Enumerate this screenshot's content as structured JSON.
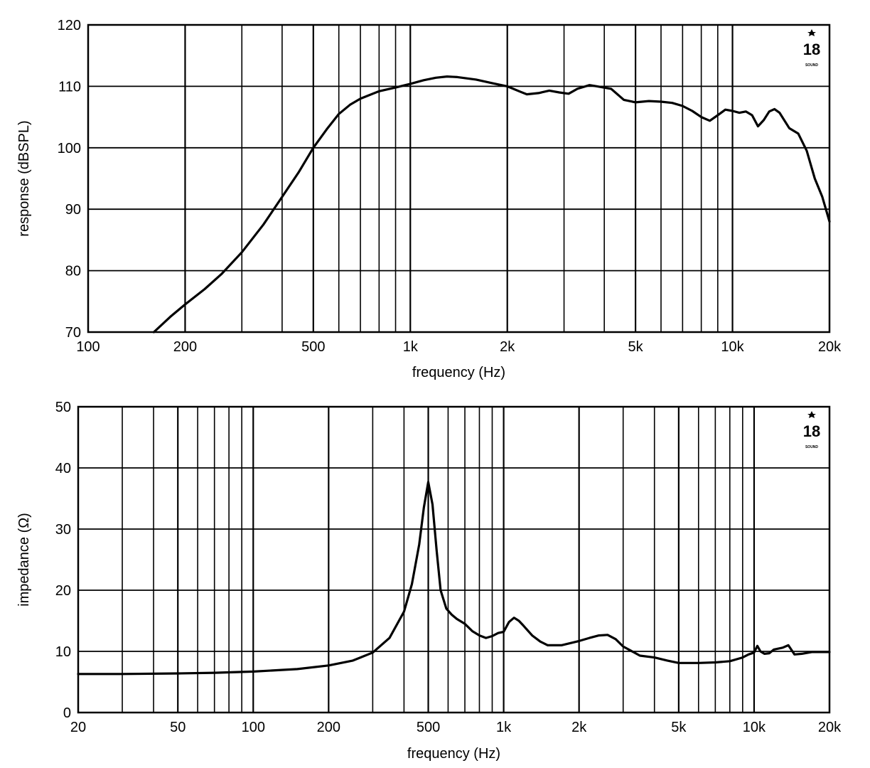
{
  "chart_data": [
    {
      "type": "line",
      "title": "",
      "xlabel": "frequency (Hz)",
      "ylabel": "response (dBSPL)",
      "xscale": "log",
      "xlim": [
        100,
        20000
      ],
      "ylim": [
        70,
        120
      ],
      "grid": true,
      "yticks": [
        70,
        80,
        90,
        100,
        110,
        120
      ],
      "xticks": [
        {
          "value": 100,
          "label": "100"
        },
        {
          "value": 200,
          "label": "200"
        },
        {
          "value": 500,
          "label": "500"
        },
        {
          "value": 1000,
          "label": "1k"
        },
        {
          "value": 2000,
          "label": "2k"
        },
        {
          "value": 5000,
          "label": "5k"
        },
        {
          "value": 10000,
          "label": "10k"
        },
        {
          "value": 20000,
          "label": "20k"
        }
      ],
      "logo": {
        "number": "18",
        "name": "SOUND",
        "position": "top-right"
      },
      "series": [
        {
          "x": [
            160,
            180,
            200,
            230,
            260,
            300,
            350,
            400,
            450,
            500,
            550,
            600,
            650,
            700,
            800,
            900,
            1000,
            1100,
            1200,
            1300,
            1400,
            1600,
            1800,
            2000,
            2200,
            2300,
            2500,
            2700,
            2900,
            3100,
            3300,
            3600,
            3800,
            4200,
            4600,
            5000,
            5500,
            6000,
            6500,
            7000,
            7500,
            8000,
            8500,
            9000,
            9500,
            10000,
            10500,
            11000,
            11500,
            12000,
            12500,
            13000,
            13500,
            14000,
            15000,
            16000,
            17000,
            18000,
            19000,
            20000
          ],
          "y": [
            70,
            72.5,
            74.5,
            77,
            79.5,
            83,
            87.5,
            92,
            96,
            100,
            103,
            105.5,
            107,
            108,
            109.2,
            109.8,
            110.4,
            111,
            111.4,
            111.6,
            111.5,
            111.1,
            110.5,
            110,
            109.1,
            108.7,
            108.9,
            109.3,
            109,
            108.8,
            109.6,
            110.2,
            110,
            109.6,
            107.8,
            107.4,
            107.6,
            107.5,
            107.3,
            106.8,
            106,
            105,
            104.4,
            105.3,
            106.2,
            106,
            105.7,
            105.9,
            105.3,
            103.5,
            104.5,
            105.9,
            106.3,
            105.7,
            103.2,
            102.3,
            99.5,
            95,
            92,
            88
          ]
        }
      ]
    },
    {
      "type": "line",
      "title": "",
      "xlabel": "frequency (Hz)",
      "ylabel": "impedance (Ω)",
      "xscale": "log",
      "xlim": [
        20,
        20000
      ],
      "ylim": [
        0,
        50
      ],
      "grid": true,
      "yticks": [
        0,
        10,
        20,
        30,
        40,
        50
      ],
      "xticks": [
        {
          "value": 20,
          "label": "20"
        },
        {
          "value": 50,
          "label": "50"
        },
        {
          "value": 100,
          "label": "100"
        },
        {
          "value": 200,
          "label": "200"
        },
        {
          "value": 500,
          "label": "500"
        },
        {
          "value": 1000,
          "label": "1k"
        },
        {
          "value": 2000,
          "label": "2k"
        },
        {
          "value": 5000,
          "label": "5k"
        },
        {
          "value": 10000,
          "label": "10k"
        },
        {
          "value": 20000,
          "label": "20k"
        }
      ],
      "logo": {
        "number": "18",
        "name": "SOUND",
        "position": "top-right"
      },
      "series": [
        {
          "x": [
            20,
            30,
            50,
            70,
            100,
            150,
            200,
            250,
            300,
            350,
            400,
            430,
            460,
            480,
            500,
            520,
            540,
            560,
            590,
            620,
            650,
            700,
            750,
            800,
            850,
            900,
            950,
            1000,
            1050,
            1100,
            1150,
            1200,
            1300,
            1400,
            1500,
            1700,
            2000,
            2200,
            2400,
            2600,
            2800,
            3000,
            3500,
            4000,
            4500,
            5000,
            6000,
            7000,
            8000,
            9000,
            9500,
            10000,
            10300,
            10600,
            11000,
            11500,
            12000,
            13000,
            13700,
            14500,
            15500,
            17000,
            20000
          ],
          "y": [
            6.3,
            6.3,
            6.4,
            6.5,
            6.7,
            7.1,
            7.7,
            8.5,
            9.8,
            12.2,
            16.5,
            21,
            27.5,
            33.5,
            37.7,
            34,
            26.5,
            20,
            17,
            16,
            15.3,
            14.5,
            13.3,
            12.6,
            12.2,
            12.5,
            13,
            13.2,
            14.8,
            15.5,
            15,
            14.2,
            12.6,
            11.6,
            11,
            11,
            11.7,
            12.2,
            12.6,
            12.7,
            12,
            10.8,
            9.3,
            9,
            8.5,
            8.1,
            8.1,
            8.2,
            8.4,
            9,
            9.5,
            9.8,
            10.9,
            10,
            9.6,
            9.7,
            10.3,
            10.6,
            11,
            9.5,
            9.6,
            9.9,
            9.9
          ]
        }
      ]
    }
  ]
}
